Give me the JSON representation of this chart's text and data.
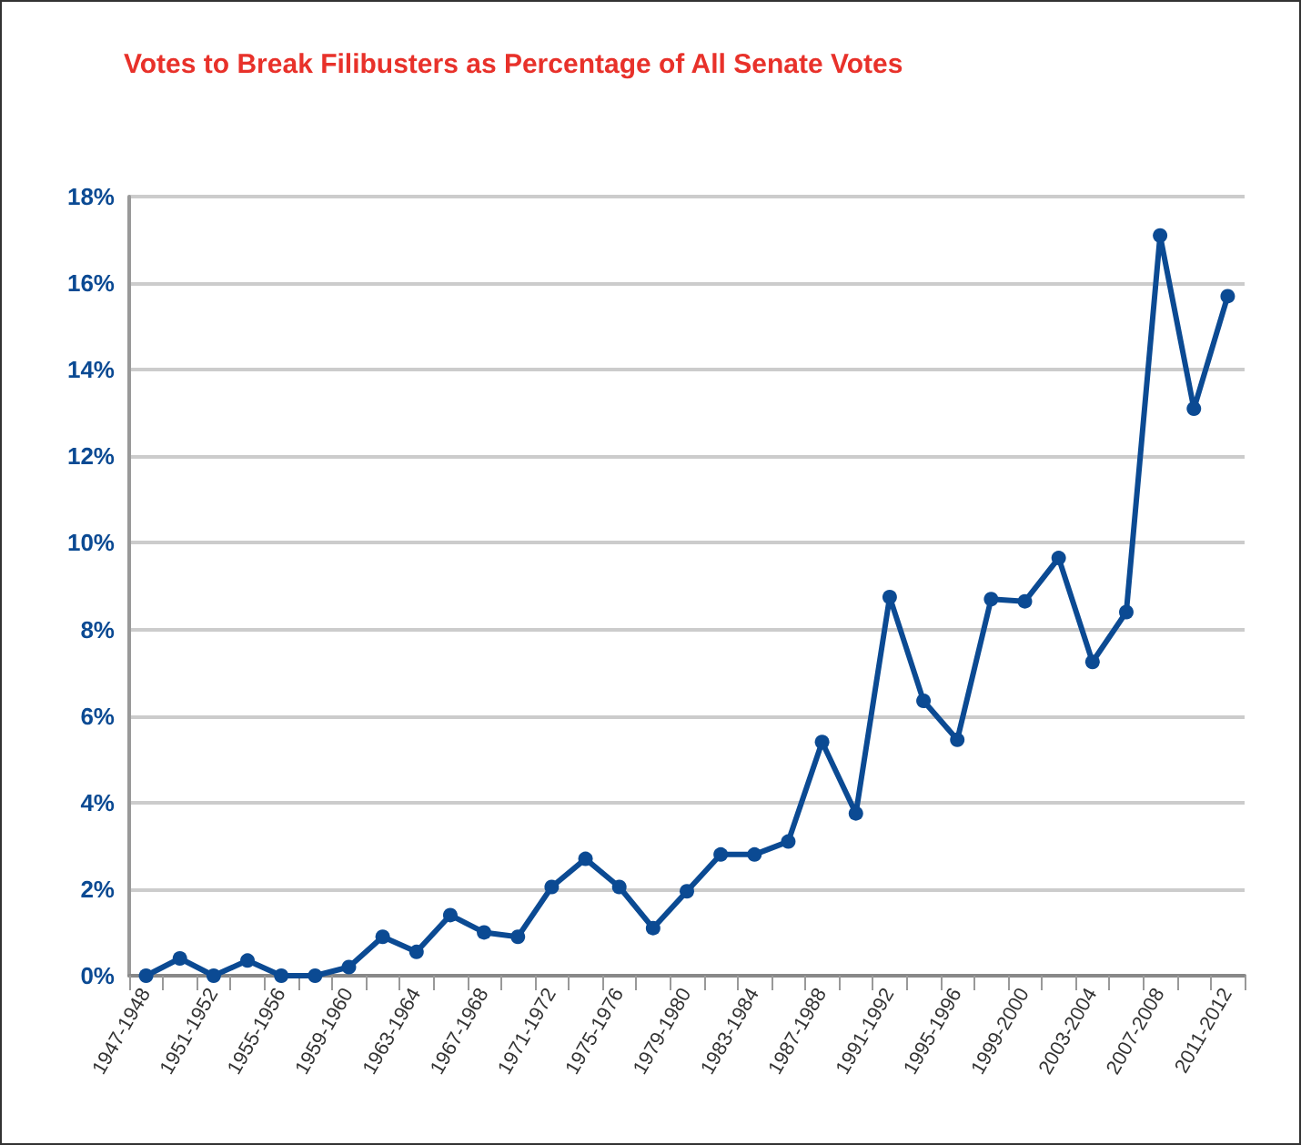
{
  "chart_data": {
    "type": "line",
    "title": "Votes to Break Filibusters as Percentage of All Senate Votes",
    "categories": [
      "1947-1948",
      null,
      "1951-1952",
      null,
      "1955-1956",
      null,
      "1959-1960",
      null,
      "1963-1964",
      null,
      "1967-1968",
      null,
      "1971-1972",
      null,
      "1975-1976",
      null,
      "1979-1980",
      null,
      "1983-1984",
      null,
      "1987-1988",
      null,
      "1991-1992",
      null,
      "1995-1996",
      null,
      "1999-2000",
      null,
      "2003-2004",
      null,
      "2007-2008",
      null,
      "2011-2012"
    ],
    "series": [
      {
        "color": "#0b4a93",
        "values": [
          0,
          0.4,
          0,
          0.35,
          0,
          0,
          0.2,
          0.9,
          0.55,
          1.4,
          1.0,
          0.9,
          2.05,
          2.7,
          2.05,
          1.1,
          1.95,
          2.8,
          2.8,
          3.1,
          5.4,
          3.75,
          8.75,
          6.35,
          5.45,
          8.7,
          8.65,
          9.65,
          7.25,
          8.4,
          17.1,
          13.1,
          15.7
        ]
      }
    ],
    "ylim": [
      0,
      18
    ],
    "yticks": [
      {
        "value": 0,
        "label": "0%"
      },
      {
        "value": 2,
        "label": "2%"
      },
      {
        "value": 4,
        "label": "4%"
      },
      {
        "value": 6,
        "label": "6%"
      },
      {
        "value": 8,
        "label": "8%"
      },
      {
        "value": 10,
        "label": "10%"
      },
      {
        "value": 12,
        "label": "12%"
      },
      {
        "value": 14,
        "label": "14%"
      },
      {
        "value": 16,
        "label": "16%"
      },
      {
        "value": 18,
        "label": "18%"
      }
    ],
    "grid": "y",
    "marker": "circle",
    "line_style": "solid"
  }
}
